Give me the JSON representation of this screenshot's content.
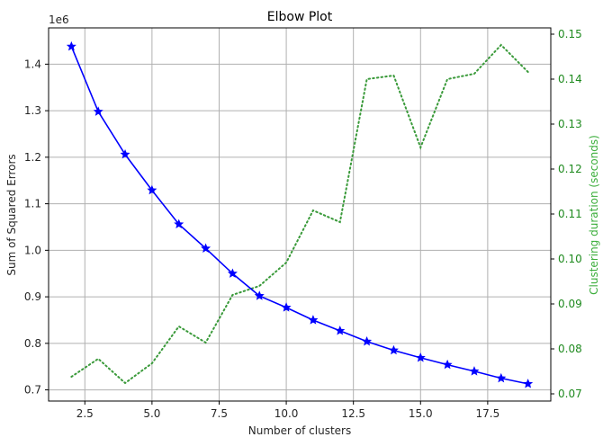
{
  "chart_data": {
    "type": "line",
    "title": "Elbow Plot",
    "xlabel": "Number of clusters",
    "ylabel": "Sum of Squared Errors",
    "ylabel_right": "Clustering duration (seconds)",
    "y_offset_label": "1e6",
    "x": [
      2,
      3,
      4,
      5,
      6,
      7,
      8,
      9,
      10,
      11,
      12,
      13,
      14,
      15,
      16,
      17,
      18,
      19
    ],
    "xlim": [
      1.15,
      19.85
    ],
    "xticks": [
      2.5,
      5.0,
      7.5,
      10.0,
      12.5,
      15.0,
      17.5
    ],
    "xtick_labels": [
      "2.5",
      "5.0",
      "7.5",
      "10.0",
      "12.5",
      "15.0",
      "17.5"
    ],
    "ylim": [
      0.676,
      1.478
    ],
    "yticks": [
      0.7,
      0.8,
      0.9,
      1.0,
      1.1,
      1.2,
      1.3,
      1.4
    ],
    "ytick_labels": [
      "0.7",
      "0.8",
      "0.9",
      "1.0",
      "1.1",
      "1.2",
      "1.3",
      "1.4"
    ],
    "ylim_right": [
      0.0684,
      0.1514
    ],
    "yticks_right": [
      0.07,
      0.08,
      0.09,
      0.1,
      0.11,
      0.12,
      0.13,
      0.14,
      0.15
    ],
    "ytick_labels_right": [
      "0.07",
      "0.08",
      "0.09",
      "0.10",
      "0.11",
      "0.12",
      "0.13",
      "0.14",
      "0.15"
    ],
    "grid": true,
    "series": [
      {
        "name": "Sum of Squared Errors",
        "axis": "left",
        "color": "#0000ff",
        "style": "solid",
        "marker": "star",
        "values": [
          1.438,
          1.298,
          1.206,
          1.129,
          1.056,
          1.004,
          0.95,
          0.902,
          0.877,
          0.85,
          0.827,
          0.804,
          0.785,
          0.769,
          0.754,
          0.74,
          0.725,
          0.713
        ]
      },
      {
        "name": "Clustering duration (seconds)",
        "axis": "right",
        "color": "#2ca02c",
        "style": "dotted",
        "marker": "none",
        "values": [
          0.0738,
          0.0778,
          0.0724,
          0.0768,
          0.085,
          0.0814,
          0.092,
          0.094,
          0.0992,
          0.1108,
          0.1082,
          0.14,
          0.1408,
          0.1248,
          0.14,
          0.1412,
          0.1476,
          0.1416
        ]
      }
    ]
  }
}
